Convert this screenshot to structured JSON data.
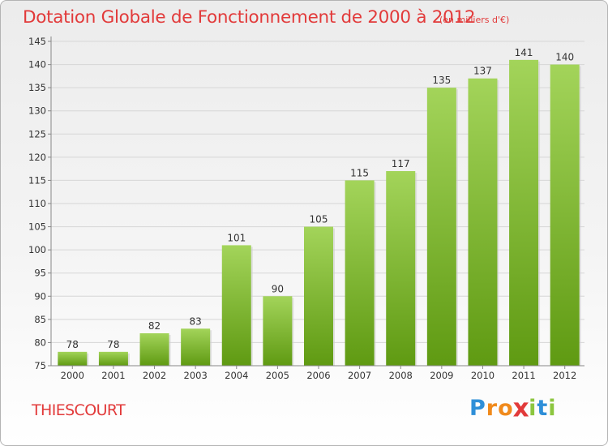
{
  "chart_data": {
    "type": "bar",
    "title": "Dotation Globale de Fonctionnement de 2000 à 2012",
    "subtitle": "(en milliers d'€)",
    "categories": [
      "2000",
      "2001",
      "2002",
      "2003",
      "2004",
      "2005",
      "2006",
      "2007",
      "2008",
      "2009",
      "2010",
      "2011",
      "2012"
    ],
    "values": [
      78,
      78,
      82,
      83,
      101,
      90,
      105,
      115,
      117,
      135,
      137,
      141,
      140
    ],
    "ylim": [
      75,
      145
    ],
    "yticks": [
      75,
      80,
      85,
      90,
      95,
      100,
      105,
      110,
      115,
      120,
      125,
      130,
      135,
      140,
      145
    ],
    "grid": true,
    "bar_color_top": "#a3d45a",
    "bar_color_bottom": "#5f9a12",
    "text_color": "#e23a3a"
  },
  "footer": {
    "town": "THIESCOURT",
    "brand_letters": [
      {
        "ch": "P",
        "color": "#2e8fd8"
      },
      {
        "ch": "r",
        "color": "#f08a1c"
      },
      {
        "ch": "o",
        "color": "#f08a1c"
      },
      {
        "ch": "x",
        "color": "#e23a3a"
      },
      {
        "ch": "i",
        "color": "#8cc63f"
      },
      {
        "ch": "t",
        "color": "#2e8fd8"
      },
      {
        "ch": "i",
        "color": "#8cc63f"
      }
    ]
  }
}
